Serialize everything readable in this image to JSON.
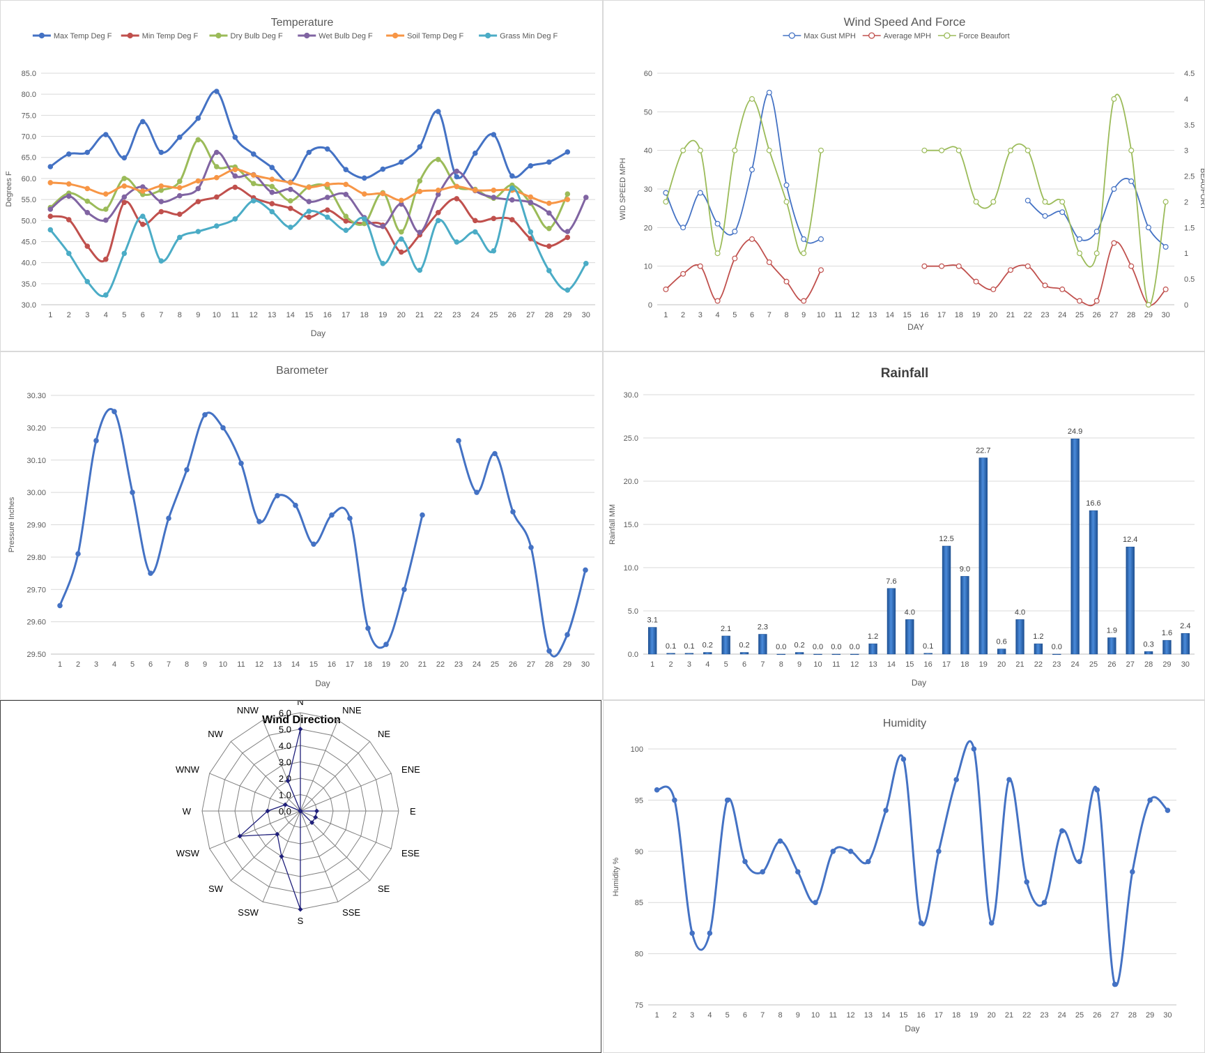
{
  "charts": [
    {
      "id": "temp",
      "type": "line",
      "title": "Temperature",
      "xlabel": "Day",
      "ylabel": "Degrees F",
      "categories": [
        "1",
        "2",
        "3",
        "4",
        "5",
        "6",
        "7",
        "8",
        "9",
        "10",
        "11",
        "12",
        "13",
        "14",
        "15",
        "16",
        "17",
        "18",
        "19",
        "20",
        "21",
        "22",
        "23",
        "24",
        "25",
        "26",
        "27",
        "28",
        "29",
        "30"
      ],
      "ylim": [
        30,
        85
      ],
      "yticks": [
        30,
        35,
        40,
        45,
        50,
        55,
        60,
        65,
        70,
        75,
        80,
        85
      ],
      "ytick_decimals": 1,
      "grid": true,
      "legend": "top",
      "series": [
        {
          "name": "Max Temp Deg F",
          "color": "#4472C4",
          "values": [
            62.8,
            65.8,
            66.2,
            70.4,
            64.9,
            73.5,
            66.2,
            69.8,
            74.3,
            80.7,
            69.8,
            65.8,
            62.6,
            59.1,
            66.2,
            67.0,
            62.1,
            60.1,
            62.2,
            63.9,
            67.5,
            75.9,
            60.4,
            66.0,
            70.4,
            60.6,
            63.0,
            63.9,
            66.3,
            null
          ]
        },
        {
          "name": "Min Temp Deg F",
          "color": "#C0504D",
          "values": [
            51.0,
            50.2,
            43.9,
            40.8,
            54.3,
            49.1,
            52.1,
            51.5,
            54.5,
            55.6,
            57.9,
            55.4,
            54.0,
            52.9,
            50.8,
            52.5,
            49.9,
            49.3,
            48.9,
            42.5,
            46.6,
            51.9,
            55.2,
            50.0,
            50.5,
            50.2,
            45.7,
            43.9,
            46.0,
            null
          ]
        },
        {
          "name": "Dry Bulb Deg F",
          "color": "#9BBB59",
          "values": [
            53.1,
            56.5,
            54.6,
            52.7,
            60.0,
            56.2,
            57.2,
            59.3,
            69.2,
            62.8,
            62.7,
            58.8,
            58.1,
            54.7,
            58.0,
            57.9,
            51.0,
            49.3,
            56.6,
            47.3,
            59.4,
            64.5,
            58.1,
            57.4,
            55.3,
            58.4,
            54.1,
            48.1,
            56.3,
            null
          ]
        },
        {
          "name": "Wet Bulb Deg F",
          "color": "#8064A2",
          "values": [
            52.7,
            55.8,
            51.9,
            50.1,
            55.6,
            58.0,
            54.5,
            55.9,
            57.6,
            66.2,
            60.6,
            60.9,
            56.7,
            57.4,
            54.5,
            55.5,
            56.2,
            50.7,
            48.6,
            53.9,
            47.2,
            56.2,
            61.7,
            57.1,
            55.5,
            54.9,
            54.3,
            51.8,
            47.4,
            55.5
          ]
        },
        {
          "name": "Soil Temp Deg F",
          "color": "#F79646",
          "values": [
            59.0,
            58.7,
            57.6,
            56.3,
            58.2,
            57.0,
            58.2,
            57.8,
            59.4,
            60.2,
            62.1,
            60.8,
            59.8,
            59.0,
            57.9,
            58.6,
            58.6,
            56.3,
            56.4,
            54.8,
            56.9,
            57.2,
            58.1,
            57.2,
            57.2,
            57.2,
            55.6,
            54.1,
            55.0,
            null
          ]
        },
        {
          "name": "Grass Min Deg F",
          "color": "#4BACC6",
          "values": [
            47.8,
            42.2,
            35.5,
            32.3,
            42.2,
            51.0,
            40.4,
            46.0,
            47.4,
            48.7,
            50.4,
            54.7,
            52.1,
            48.4,
            52.2,
            50.8,
            47.7,
            50.4,
            39.8,
            45.6,
            38.2,
            50.0,
            44.9,
            47.3,
            42.8,
            57.7,
            47.3,
            38.1,
            33.5,
            39.8
          ]
        }
      ]
    },
    {
      "id": "wind",
      "type": "line",
      "title": "Wind Speed And Force",
      "xlabel": "DAY",
      "ylabel": "WID SPEED MPH",
      "y2label": "BEAUFORT",
      "categories": [
        "1",
        "2",
        "3",
        "4",
        "5",
        "6",
        "7",
        "8",
        "9",
        "10",
        "11",
        "12",
        "13",
        "14",
        "15",
        "16",
        "17",
        "18",
        "19",
        "20",
        "21",
        "22",
        "23",
        "24",
        "25",
        "26",
        "27",
        "28",
        "29",
        "30"
      ],
      "ylim": [
        0,
        60
      ],
      "yticks": [
        0,
        10,
        20,
        30,
        40,
        50,
        60
      ],
      "y2lim": [
        0,
        4.5
      ],
      "y2ticks": [
        "0",
        "0.5",
        "1",
        "1.5",
        "2",
        "2.5",
        "3",
        "3.5",
        "4",
        "4.5"
      ],
      "grid": true,
      "legend": "top",
      "series": [
        {
          "name": "Max Gust MPH",
          "color": "#4472C4",
          "axis": "left",
          "values": [
            29,
            20,
            29,
            21,
            19,
            35,
            55,
            31,
            17,
            17,
            null,
            null,
            null,
            null,
            null,
            null,
            null,
            null,
            null,
            null,
            null,
            27,
            23,
            24,
            17,
            19,
            30,
            32,
            20,
            15
          ]
        },
        {
          "name": "Average MPH",
          "color": "#C0504D",
          "axis": "left",
          "values": [
            4,
            8,
            10,
            1,
            12,
            17,
            11,
            6,
            1,
            9,
            null,
            null,
            null,
            null,
            null,
            10,
            10,
            10,
            6,
            4,
            9,
            10,
            5,
            4,
            1,
            1,
            16,
            10,
            0,
            4
          ]
        },
        {
          "name": "Force Beaufort",
          "color": "#9BBB59",
          "axis": "right",
          "values": [
            2,
            3,
            3,
            1,
            3,
            4,
            3,
            2,
            1,
            3,
            null,
            null,
            null,
            null,
            null,
            3,
            3,
            3,
            2,
            2,
            3,
            3,
            2,
            2,
            1,
            1,
            4,
            3,
            0,
            2
          ]
        }
      ]
    },
    {
      "id": "baro",
      "type": "line",
      "title": "Barometer",
      "xlabel": "Day",
      "ylabel": "Pressure Inches",
      "categories": [
        "1",
        "2",
        "3",
        "4",
        "5",
        "6",
        "7",
        "8",
        "9",
        "10",
        "11",
        "12",
        "13",
        "14",
        "15",
        "16",
        "17",
        "18",
        "19",
        "20",
        "21",
        "22",
        "23",
        "24",
        "25",
        "26",
        "27",
        "28",
        "29",
        "30"
      ],
      "ylim": [
        29.5,
        30.3
      ],
      "yticks": [
        29.5,
        29.6,
        29.7,
        29.8,
        29.9,
        30.0,
        30.1,
        30.2,
        30.3
      ],
      "ytick_decimals": 2,
      "grid": true,
      "series": [
        {
          "name": "",
          "color": "#4472C4",
          "values": [
            29.65,
            29.81,
            30.16,
            30.25,
            30.0,
            29.75,
            29.92,
            30.07,
            30.24,
            30.2,
            30.09,
            29.91,
            29.99,
            29.96,
            29.84,
            29.93,
            29.92,
            29.58,
            29.53,
            29.7,
            29.93,
            null,
            30.16,
            30.0,
            30.12,
            29.94,
            29.83,
            29.51,
            29.56,
            29.76
          ]
        }
      ]
    },
    {
      "id": "rain",
      "type": "bar",
      "title": "Rainfall",
      "xlabel": "Day",
      "ylabel": "Rainfall MM",
      "categories": [
        "1",
        "2",
        "3",
        "4",
        "5",
        "6",
        "7",
        "8",
        "9",
        "10",
        "11",
        "12",
        "13",
        "14",
        "15",
        "16",
        "17",
        "18",
        "19",
        "20",
        "21",
        "22",
        "23",
        "24",
        "25",
        "26",
        "27",
        "28",
        "29",
        "30"
      ],
      "ylim": [
        0,
        30
      ],
      "yticks": [
        0,
        5,
        10,
        15,
        20,
        25,
        30
      ],
      "ytick_decimals": 1,
      "grid": true,
      "series": [
        {
          "name": "",
          "color": "#2E6BB8",
          "values": [
            3.1,
            0.1,
            0.1,
            0.2,
            2.1,
            0.2,
            2.3,
            0.0,
            0.2,
            0.0,
            0.0,
            0.0,
            1.2,
            7.6,
            4.0,
            0.1,
            12.5,
            9.0,
            22.7,
            0.6,
            4.0,
            1.2,
            0.0,
            24.9,
            16.6,
            1.9,
            12.4,
            0.3,
            1.6,
            2.4
          ]
        }
      ],
      "data_labels": [
        "3.1",
        "0.1",
        "0.1",
        "0.2",
        "2.1",
        "0.2",
        "2.3",
        "0.0",
        "0.2",
        "0.0",
        "0.0",
        "0.0",
        "1.2",
        "7.6",
        "4.0",
        "0.1",
        "12.5",
        "9.0",
        "22.7",
        "0.6",
        "4.0",
        "1.2",
        "0.0",
        "24.9",
        "16.6",
        "1.9",
        "12.4",
        "0.3",
        "1.6",
        "2.4"
      ]
    },
    {
      "id": "dir",
      "type": "radar",
      "title": "Wind Direction",
      "directions": [
        "N",
        "NNE",
        "NE",
        "ENE",
        "E",
        "ESE",
        "SE",
        "SSE",
        "S",
        "SSW",
        "SW",
        "WSW",
        "W",
        "WNW",
        "NW",
        "NNW"
      ],
      "rticks": [
        "0.0",
        "1.0",
        "2.0",
        "3.0",
        "4.0",
        "5.0",
        "6.0"
      ],
      "rlim": [
        0,
        6
      ],
      "series": [
        {
          "name": "",
          "color": "#1F1F7A",
          "values": [
            5,
            0,
            0,
            0,
            1,
            1,
            1,
            0,
            6,
            3,
            2,
            4,
            2,
            1,
            0,
            2
          ]
        }
      ]
    },
    {
      "id": "hum",
      "type": "line",
      "title": "Humidity",
      "xlabel": "Day",
      "ylabel": "Humidity %",
      "categories": [
        "1",
        "2",
        "3",
        "4",
        "5",
        "6",
        "7",
        "8",
        "9",
        "10",
        "11",
        "12",
        "13",
        "14",
        "15",
        "16",
        "17",
        "18",
        "19",
        "20",
        "21",
        "22",
        "23",
        "24",
        "25",
        "26",
        "27",
        "28",
        "29",
        "30"
      ],
      "ylim": [
        75,
        100
      ],
      "yticks": [
        75,
        80,
        85,
        90,
        95,
        100
      ],
      "ytick_decimals": 0,
      "grid": true,
      "series": [
        {
          "name": "",
          "color": "#4472C4",
          "values": [
            96,
            95,
            82,
            82,
            95,
            89,
            88,
            91,
            88,
            85,
            90,
            90,
            89,
            94,
            99,
            83,
            90,
            97,
            100,
            83,
            97,
            87,
            85,
            92,
            89,
            96,
            77,
            88,
            95,
            94
          ]
        }
      ]
    }
  ]
}
